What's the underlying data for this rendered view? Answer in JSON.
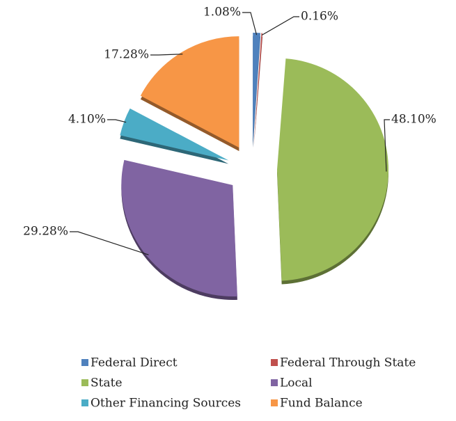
{
  "chart_data": {
    "type": "pie",
    "categories": [
      "Federal Direct",
      "Federal Through State",
      "State",
      "Local",
      "Other Financing Sources",
      "Fund Balance"
    ],
    "values": [
      1.08,
      0.16,
      48.1,
      29.28,
      4.1,
      17.28
    ],
    "value_labels": [
      "1.08%",
      "0.16%",
      "48.10%",
      "29.28%",
      "4.10%",
      "17.28%"
    ],
    "colors": [
      "#4f81bd",
      "#c0504d",
      "#9bbb59",
      "#8064a2",
      "#4bacc6",
      "#f79646"
    ],
    "legend": "bottom"
  }
}
